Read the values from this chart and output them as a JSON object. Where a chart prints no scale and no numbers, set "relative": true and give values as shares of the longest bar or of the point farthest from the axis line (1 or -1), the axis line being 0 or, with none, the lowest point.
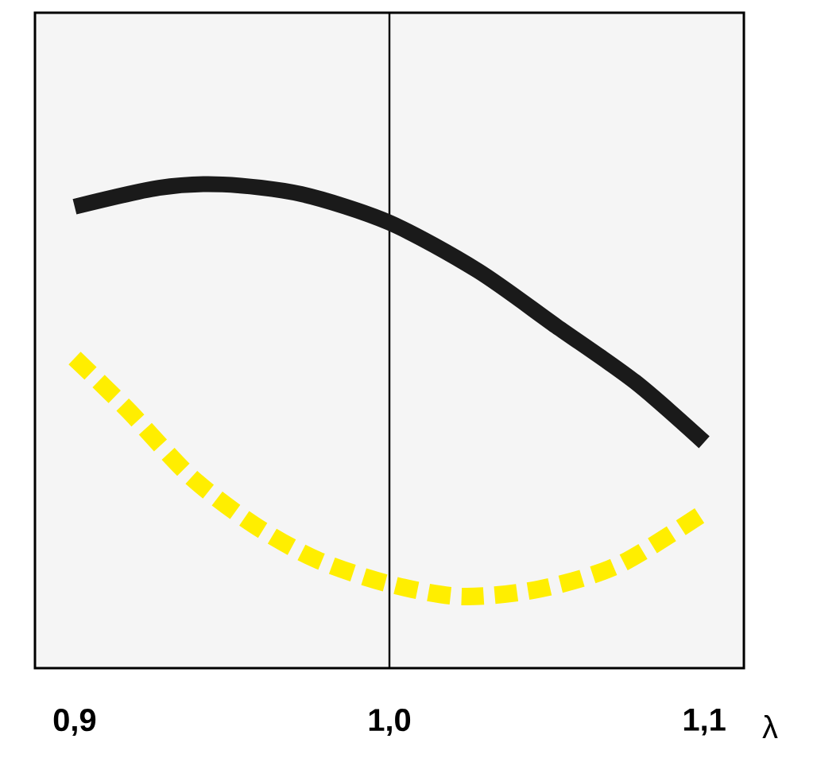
{
  "chart_data": {
    "type": "line",
    "relative": true,
    "xlabel": "λ",
    "xlim": [
      0.8874,
      1.1126
    ],
    "xticks": [
      {
        "value": 0.9,
        "label": "0,9"
      },
      {
        "value": 1.0,
        "label": "1,0"
      },
      {
        "value": 1.1,
        "label": "1,1"
      }
    ],
    "ref_lines": [
      {
        "axis": "x",
        "value": 1.0,
        "color": "#000000"
      }
    ],
    "series": [
      {
        "color": "#1a1a1a",
        "line_style": "solid",
        "x": [
          0.9,
          0.9268,
          0.947,
          0.972,
          1.0,
          1.028,
          1.053,
          1.078,
          1.1
        ],
        "values": [
          0.954,
          0.993,
          1.0,
          0.98,
          0.921,
          0.822,
          0.707,
          0.592,
          0.467
        ]
      },
      {
        "color": "#ffee00",
        "line_style": "dashed",
        "x": [
          0.9,
          0.917,
          0.937,
          0.957,
          0.977,
          1.0,
          1.023,
          1.048,
          1.073,
          1.1
        ],
        "values": [
          0.641,
          0.533,
          0.395,
          0.296,
          0.224,
          0.174,
          0.148,
          0.164,
          0.214,
          0.322
        ]
      }
    ]
  }
}
